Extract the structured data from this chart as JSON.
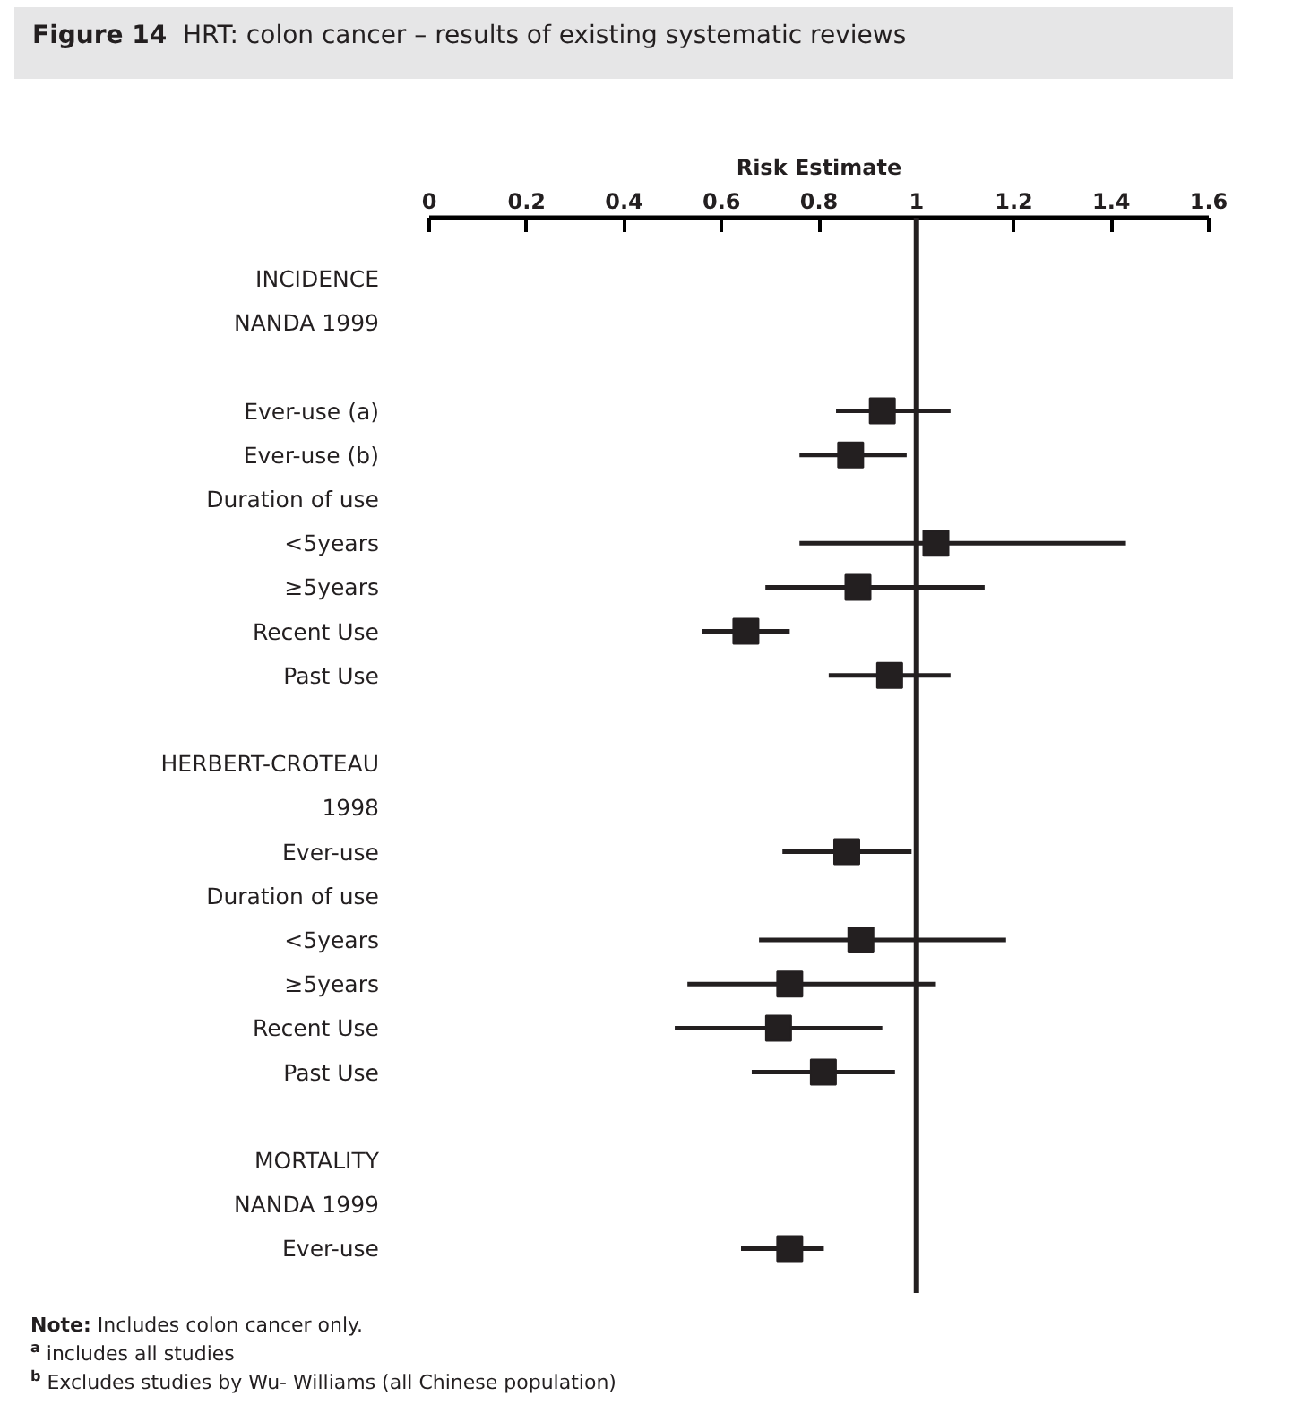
{
  "chart_data": {
    "type": "scatter",
    "orientation": "horizontal",
    "title": "Figure 14   HRT: colon cancer – results of existing systematic reviews",
    "xlabel": "Risk Estimate",
    "categories": [
      "INCIDENCE",
      "NANDA 1999",
      null,
      "Ever-use (a)",
      "Ever-use (b)",
      "Duration of use",
      "<5years",
      "≥5years",
      "Recent Use",
      "Past Use",
      null,
      "HERBERT-CROTEAU",
      "1998",
      "Ever-use",
      "Duration of use",
      "<5years",
      "≥5years",
      "Recent Use",
      "Past Use",
      null,
      "MORTALITY",
      "NANDA 1999",
      "Ever-use"
    ],
    "values": [
      null,
      null,
      null,
      0.93,
      0.865,
      null,
      1.04,
      0.88,
      0.65,
      0.945,
      null,
      null,
      null,
      0.857,
      null,
      0.886,
      0.74,
      0.717,
      0.809,
      null,
      null,
      null,
      0.74
    ],
    "errors": [
      null,
      null,
      null,
      [
        0.835,
        1.07
      ],
      [
        0.76,
        0.98
      ],
      null,
      [
        0.76,
        1.43
      ],
      [
        0.69,
        1.14
      ],
      [
        0.56,
        0.74
      ],
      [
        0.82,
        1.07
      ],
      null,
      null,
      null,
      [
        0.725,
        0.99
      ],
      null,
      [
        0.677,
        1.184
      ],
      [
        0.53,
        1.04
      ],
      [
        0.504,
        0.93
      ],
      [
        0.662,
        0.956
      ],
      null,
      null,
      null,
      [
        0.64,
        0.81
      ]
    ],
    "color": "#231f20",
    "marker": "square",
    "xlim": [
      0,
      1.6
    ],
    "xticks": [
      0,
      {
        "value": 0.2,
        "label": "0.2"
      },
      {
        "value": 0.4,
        "label": "0.4"
      },
      {
        "value": 0.6,
        "label": "0.6"
      },
      {
        "value": 0.8,
        "label": "0.8"
      },
      1,
      {
        "value": 1.2,
        "label": "1.2"
      },
      {
        "value": 1.4,
        "label": "1.4"
      },
      {
        "value": 1.6,
        "label": "1.6"
      }
    ],
    "ref_lines": [
      {
        "axis": "x",
        "value": 1,
        "label": null
      }
    ],
    "grid": false,
    "legend": false,
    "annotations": [
      "Note: Includes colon cancer only.",
      "$^{a}$ includes all studies",
      "$^{b}$ Excludes studies by Wu- Williams (all Chinese population)"
    ]
  }
}
